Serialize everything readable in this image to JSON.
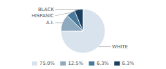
{
  "chart_data": {
    "type": "pie",
    "categories": [
      "WHITE",
      "A.I.",
      "HISPANIC",
      "BLACK"
    ],
    "values": [
      75.0,
      12.5,
      6.3,
      6.3
    ],
    "value_labels": [
      "75.0%",
      "12.5%",
      "6.3%",
      "6.3%"
    ],
    "colors": [
      "#d9e3ee",
      "#8faabf",
      "#4a7a9b",
      "#1c3f5e"
    ],
    "legend": "bottom"
  }
}
